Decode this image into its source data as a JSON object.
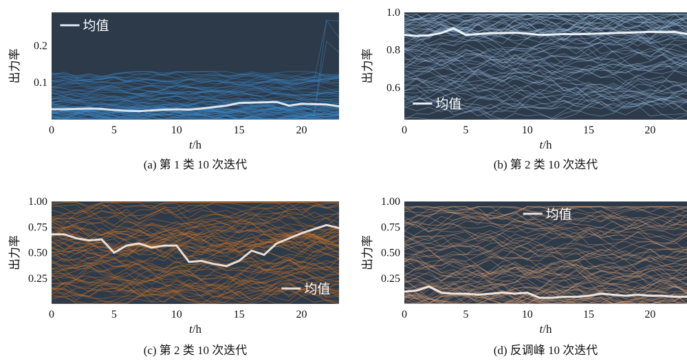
{
  "chart_data": [
    {
      "type": "line",
      "panel": "a",
      "caption": "(a) 第 1 类 10 次迭代",
      "xlabel_italic": "t",
      "xlabel_unit": "/h",
      "ylabel": "出力率",
      "xlim": [
        0,
        23
      ],
      "ylim": [
        0,
        0.29
      ],
      "xticks": [
        0,
        5,
        10,
        15,
        20
      ],
      "yticks": [
        0.1,
        0.2
      ],
      "ytick_labels": [
        "0.1",
        "0.2"
      ],
      "legend": "均值",
      "legend_position": "top-left",
      "background": "#2d3a4a",
      "line_color": "#3b8fd4",
      "mean_color": "#dfe6ee",
      "mean": {
        "x": [
          0,
          1,
          2,
          3,
          4,
          5,
          6,
          7,
          8,
          9,
          10,
          11,
          12,
          13,
          14,
          15,
          16,
          17,
          18,
          19,
          20,
          21,
          22,
          23
        ],
        "y": [
          0.028,
          0.028,
          0.029,
          0.03,
          0.029,
          0.026,
          0.024,
          0.023,
          0.025,
          0.027,
          0.028,
          0.027,
          0.03,
          0.034,
          0.038,
          0.045,
          0.046,
          0.047,
          0.048,
          0.038,
          0.043,
          0.042,
          0.041,
          0.036
        ]
      },
      "band": {
        "low": 0.005,
        "high": 0.13,
        "spike_high": 0.27
      }
    },
    {
      "type": "line",
      "panel": "b",
      "caption": "(b) 第 2 类 10 次迭代",
      "xlabel_italic": "t",
      "xlabel_unit": "/h",
      "ylabel": "出力率",
      "xlim": [
        0,
        23
      ],
      "ylim": [
        0.43,
        1.0
      ],
      "xticks": [
        0,
        5,
        10,
        15,
        20
      ],
      "yticks": [
        0.6,
        0.8,
        1.0
      ],
      "ytick_labels": [
        "0.6",
        "0.8",
        "1.0"
      ],
      "legend": "均值",
      "legend_position": "bottom-left",
      "background": "#2d3a4a",
      "line_color": "#9fc2e6",
      "mean_color": "#eef3f8",
      "mean": {
        "x": [
          0,
          1,
          2,
          3,
          4,
          5,
          6,
          7,
          8,
          9,
          10,
          11,
          12,
          13,
          14,
          15,
          16,
          17,
          18,
          19,
          20,
          21,
          22,
          23
        ],
        "y": [
          0.88,
          0.875,
          0.878,
          0.89,
          0.915,
          0.88,
          0.885,
          0.89,
          0.89,
          0.892,
          0.888,
          0.88,
          0.882,
          0.885,
          0.884,
          0.886,
          0.888,
          0.89,
          0.892,
          0.894,
          0.897,
          0.895,
          0.896,
          0.885
        ]
      },
      "band": {
        "low": 0.45,
        "high": 0.99
      }
    },
    {
      "type": "line",
      "panel": "c",
      "caption": "(c) 第 2 类 10 次迭代",
      "xlabel_italic": "t",
      "xlabel_unit": "/h",
      "ylabel": "出力率",
      "xlim": [
        0,
        23
      ],
      "ylim": [
        0,
        1.0
      ],
      "xticks": [
        0,
        5,
        10,
        15,
        20
      ],
      "yticks": [
        0.25,
        0.5,
        0.75,
        1.0
      ],
      "ytick_labels": [
        "0.25",
        "0.50",
        "0.75",
        "1.00"
      ],
      "legend": "均值",
      "legend_position": "bottom-right",
      "background": "#2d3a4a",
      "line_color": "#e07a22",
      "mean_color": "#eadfd6",
      "mean": {
        "x": [
          0,
          1,
          2,
          3,
          4,
          5,
          6,
          7,
          8,
          9,
          10,
          11,
          12,
          13,
          14,
          15,
          16,
          17,
          18,
          19,
          20,
          21,
          22,
          23
        ],
        "y": [
          0.68,
          0.68,
          0.64,
          0.62,
          0.63,
          0.5,
          0.57,
          0.59,
          0.55,
          0.57,
          0.57,
          0.41,
          0.42,
          0.39,
          0.37,
          0.42,
          0.52,
          0.48,
          0.59,
          0.64,
          0.69,
          0.73,
          0.77,
          0.74
        ]
      },
      "band": {
        "low": 0.02,
        "high": 0.99
      }
    },
    {
      "type": "line",
      "panel": "d",
      "caption": "(d) 反调峰 10 次迭代",
      "xlabel_italic": "t",
      "xlabel_unit": "/h",
      "ylabel": "出力率",
      "xlim": [
        0,
        23
      ],
      "ylim": [
        0,
        1.0
      ],
      "xticks": [
        0,
        5,
        10,
        15,
        20
      ],
      "yticks": [
        0.25,
        0.5,
        0.75,
        1.0
      ],
      "ytick_labels": [
        "0.25",
        "0.50",
        "0.75",
        "1.00"
      ],
      "legend": "均值",
      "legend_position": "top-center",
      "background": "#2d3a4a",
      "line_color": "#e0a276",
      "mean_color": "#f0e6de",
      "mean": {
        "x": [
          0,
          1,
          2,
          3,
          4,
          5,
          6,
          7,
          8,
          9,
          10,
          11,
          12,
          13,
          14,
          15,
          16,
          17,
          18,
          19,
          20,
          21,
          22,
          23
        ],
        "y": [
          0.12,
          0.13,
          0.17,
          0.11,
          0.1,
          0.1,
          0.09,
          0.1,
          0.11,
          0.1,
          0.11,
          0.06,
          0.06,
          0.07,
          0.07,
          0.08,
          0.1,
          0.09,
          0.08,
          0.09,
          0.08,
          0.08,
          0.07,
          0.07
        ]
      },
      "band": {
        "low": 0.01,
        "high": 0.95
      }
    }
  ]
}
